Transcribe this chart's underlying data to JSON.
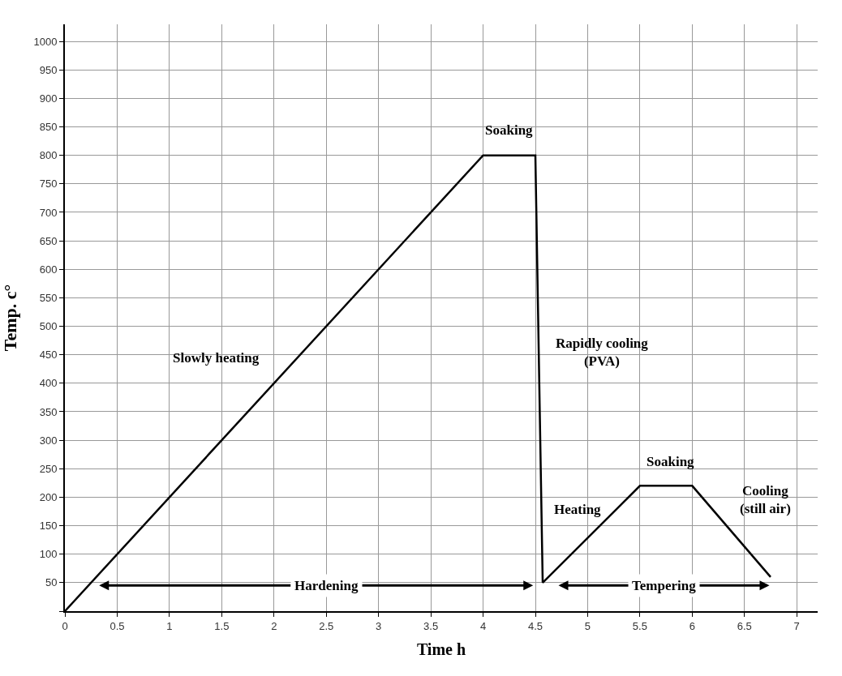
{
  "chart_data": {
    "type": "line",
    "xlabel": "Time h",
    "ylabel": "Temp. c°",
    "x": [
      0,
      4,
      4.5,
      4.57,
      5.5,
      6,
      6.75
    ],
    "series": [
      {
        "color": "#000000",
        "values": [
          0,
          800,
          800,
          50,
          220,
          220,
          60
        ]
      }
    ],
    "xlim": [
      0,
      7.2
    ],
    "ylim": [
      0,
      1030
    ],
    "xticks": [
      0,
      0.5,
      1,
      1.5,
      2,
      2.5,
      3,
      3.5,
      4,
      4.5,
      5,
      5.5,
      6,
      6.5,
      7
    ],
    "yticks": [
      {
        "value": 0,
        "label": null
      },
      50,
      100,
      150,
      200,
      250,
      300,
      350,
      400,
      450,
      500,
      550,
      600,
      650,
      700,
      750,
      800,
      850,
      900,
      950,
      1000
    ],
    "grid": true,
    "marker": "none",
    "line_style": "solid",
    "annotations": [
      "Soaking",
      "Slowly heating",
      "Rapidly cooling\n(PVA)",
      "Soaking",
      "Heating",
      "Cooling\n(still air)",
      "Hardening",
      "Tempering"
    ]
  }
}
